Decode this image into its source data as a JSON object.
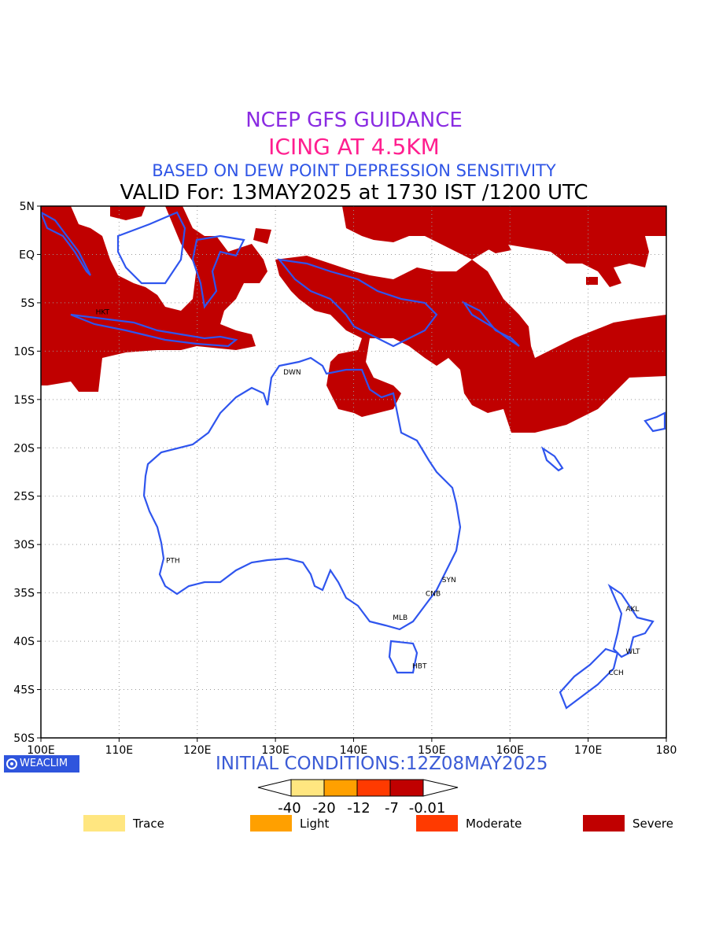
{
  "title": {
    "line1": "NCEP GFS GUIDANCE",
    "line2": "ICING AT 4.5KM",
    "line3": "BASED ON DEW POINT DEPRESSION SENSITIVITY",
    "line4": "VALID For: 13MAY2025 at 1730 IST /1200 UTC"
  },
  "colors": {
    "title1": "#8a2be2",
    "title2": "#ff1f8f",
    "title3": "#2f55e6",
    "coast": "#2f55ee",
    "severe": "#c00000",
    "moderate": "#ff3a00",
    "light": "#ffa000",
    "trace": "#ffe680"
  },
  "map": {
    "lat_labels": [
      "5N",
      "EQ",
      "5S",
      "10S",
      "15S",
      "20S",
      "25S",
      "30S",
      "35S",
      "40S",
      "45S",
      "50S"
    ],
    "lon_labels": [
      "100E",
      "110E",
      "120E",
      "130E",
      "140E",
      "150E",
      "160E",
      "170E",
      "180"
    ],
    "stations": [
      {
        "code": "HKT",
        "lon": 107.0,
        "lat": -6.2
      },
      {
        "code": "DWN",
        "lon": 131.0,
        "lat": -12.4
      },
      {
        "code": "PTH",
        "lon": 116.0,
        "lat": -31.9
      },
      {
        "code": "SYN",
        "lon": 151.3,
        "lat": -33.9
      },
      {
        "code": "CNB",
        "lon": 149.2,
        "lat": -35.3
      },
      {
        "code": "MLB",
        "lon": 145.0,
        "lat": -37.8
      },
      {
        "code": "HBT",
        "lon": 147.5,
        "lat": -42.8
      },
      {
        "code": "AKL",
        "lon": 174.8,
        "lat": -36.9
      },
      {
        "code": "WLT",
        "lon": 174.8,
        "lat": -41.3
      },
      {
        "code": "CCH",
        "lon": 172.6,
        "lat": -43.5
      }
    ]
  },
  "logo": "WEACLIM",
  "initial_conditions": "INITIAL CONDITIONS:12Z08MAY2025",
  "colorbar": {
    "labels": [
      "-40",
      "-20",
      "-12",
      "-7",
      "-0.01"
    ]
  },
  "legend": [
    {
      "label": "Trace",
      "color": "#ffe680"
    },
    {
      "label": "Light",
      "color": "#ffa000"
    },
    {
      "label": "Moderate",
      "color": "#ff3a00"
    },
    {
      "label": "Severe",
      "color": "#c00000"
    }
  ]
}
